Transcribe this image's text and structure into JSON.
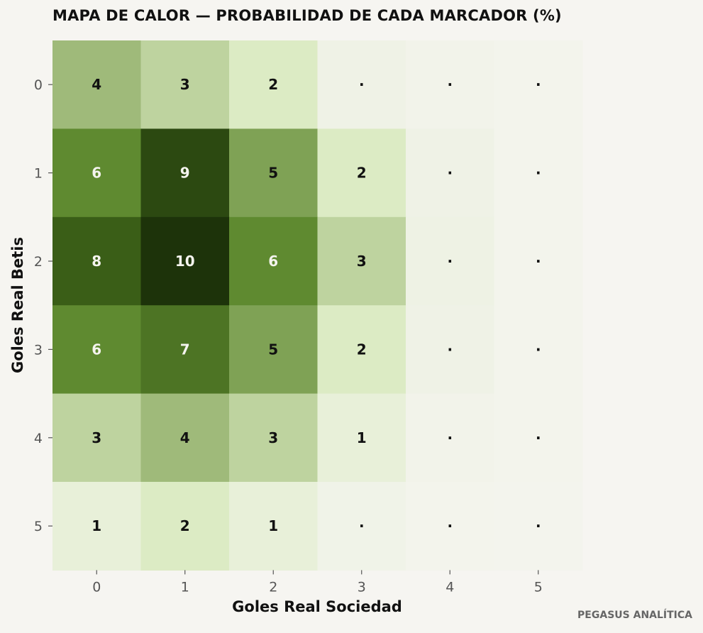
{
  "chart_data": {
    "type": "heatmap",
    "title": "MAPA DE CALOR — PROBABILIDAD DE CADA MARCADOR (%)",
    "xlabel": "Goles Real Sociedad",
    "ylabel": "Goles Real Betis",
    "x_categories": [
      "0",
      "1",
      "2",
      "3",
      "4",
      "5"
    ],
    "y_categories": [
      "0",
      "1",
      "2",
      "3",
      "4",
      "5"
    ],
    "values": [
      [
        4,
        3,
        2,
        0.4,
        0.2,
        0.1
      ],
      [
        6,
        9,
        5,
        2,
        0.4,
        0.1
      ],
      [
        8,
        10,
        6,
        3,
        0.5,
        0.1
      ],
      [
        6,
        7,
        5,
        2,
        0.4,
        0.1
      ],
      [
        3,
        4,
        3,
        1,
        0.2,
        0.1
      ],
      [
        1,
        2,
        1,
        0.3,
        0.1,
        0.05
      ]
    ],
    "labels": [
      [
        "4",
        "3",
        "2",
        "·",
        "·",
        "·"
      ],
      [
        "6",
        "9",
        "5",
        "2",
        "·",
        "·"
      ],
      [
        "8",
        "10",
        "6",
        "3",
        "·",
        "·"
      ],
      [
        "6",
        "7",
        "5",
        "2",
        "·",
        "·"
      ],
      [
        "3",
        "4",
        "3",
        "1",
        "·",
        "·"
      ],
      [
        "1",
        "2",
        "1",
        "·",
        "·",
        "·"
      ]
    ],
    "colorscale": [
      "#f4f4ee",
      "#dcebc4",
      "#9fba7a",
      "#5f8a30",
      "#3a5e17",
      "#1d330a"
    ],
    "vmax": 10,
    "grid": false
  },
  "watermark": "PEGASUS ANALÍTICA"
}
